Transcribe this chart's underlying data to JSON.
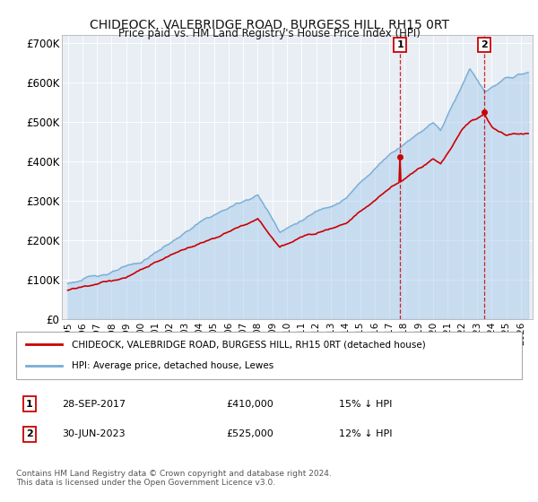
{
  "title": "CHIDEOCK, VALEBRIDGE ROAD, BURGESS HILL, RH15 0RT",
  "subtitle": "Price paid vs. HM Land Registry's House Price Index (HPI)",
  "legend_label_red": "CHIDEOCK, VALEBRIDGE ROAD, BURGESS HILL, RH15 0RT (detached house)",
  "legend_label_blue": "HPI: Average price, detached house, Lewes",
  "sale1_date": "28-SEP-2017",
  "sale1_price": "£410,000",
  "sale1_hpi": "15% ↓ HPI",
  "sale1_year": 2017.75,
  "sale1_value": 410000,
  "sale2_date": "30-JUN-2023",
  "sale2_price": "£525,000",
  "sale2_hpi": "12% ↓ HPI",
  "sale2_year": 2023.5,
  "sale2_value": 525000,
  "footer": "Contains HM Land Registry data © Crown copyright and database right 2024.\nThis data is licensed under the Open Government Licence v3.0.",
  "ylim": [
    0,
    720000
  ],
  "yticks": [
    0,
    100000,
    200000,
    300000,
    400000,
    500000,
    600000,
    700000
  ],
  "ytick_labels": [
    "£0",
    "£100K",
    "£200K",
    "£300K",
    "£400K",
    "£500K",
    "£600K",
    "£700K"
  ],
  "background_color": "#ffffff",
  "plot_bg_color": "#e8eef4",
  "grid_color": "#ffffff",
  "red_color": "#cc0000",
  "blue_color": "#7aadd4",
  "blue_fill_color": "#aaccee",
  "sale_marker_color": "#cc0000",
  "dashed_line_color": "#cc0000",
  "xlim_left": 1994.6,
  "xlim_right": 2026.8
}
